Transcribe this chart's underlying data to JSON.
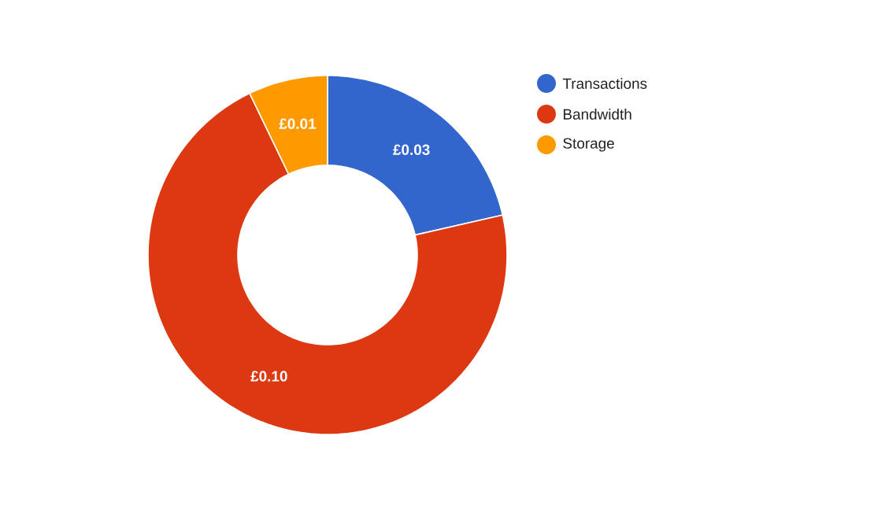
{
  "chart_data": {
    "type": "donut",
    "categories": [
      "Transactions",
      "Bandwidth",
      "Storage"
    ],
    "values": [
      0.03,
      0.1,
      0.01
    ],
    "colors": [
      "#3366cc",
      "#dc3912",
      "#ff9900"
    ],
    "value_labels": [
      "£0.03",
      "£0.10",
      "£0.01"
    ],
    "legend": "right"
  }
}
